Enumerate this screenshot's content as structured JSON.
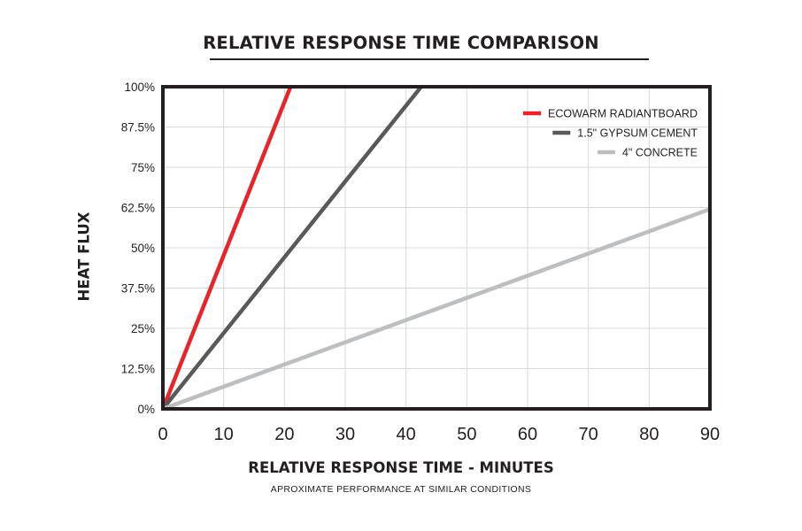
{
  "chart_data": {
    "type": "line",
    "title": "RELATIVE RESPONSE TIME COMPARISON",
    "subtitle": "APROXIMATE PERFORMANCE AT SIMILAR CONDITIONS",
    "xlabel": "RELATIVE RESPONSE TIME - MINUTES",
    "ylabel": "HEAT FLUX",
    "xlim": [
      0,
      90
    ],
    "ylim": [
      0,
      100
    ],
    "x_ticks": [
      0,
      10,
      20,
      30,
      40,
      50,
      60,
      70,
      80,
      90
    ],
    "x_tick_labels": [
      "0",
      "10",
      "20",
      "30",
      "40",
      "50",
      "60",
      "70",
      "80",
      "90"
    ],
    "y_ticks": [
      0,
      12.5,
      25,
      37.5,
      50,
      62.5,
      75,
      87.5,
      100
    ],
    "y_tick_labels": [
      "0%",
      "12.5%",
      "25%",
      "37.5%",
      "50%",
      "62.5%",
      "75%",
      "87.5%",
      "100%"
    ],
    "grid": true,
    "legend_position": "top-right",
    "series": [
      {
        "name": "ECOWARM RADIANTBOARD",
        "color": "#e8232b",
        "x": [
          0,
          21
        ],
        "y": [
          0,
          100
        ]
      },
      {
        "name": "1.5\" GYPSUM CEMENT",
        "color": "#58595b",
        "x": [
          0,
          42.5
        ],
        "y": [
          0,
          100
        ]
      },
      {
        "name": "4\" CONCRETE",
        "color": "#bcbec0",
        "x": [
          0,
          90
        ],
        "y": [
          0,
          62
        ]
      }
    ]
  }
}
